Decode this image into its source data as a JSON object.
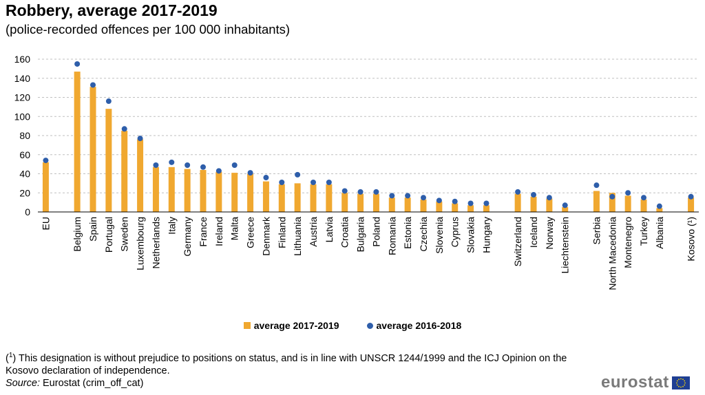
{
  "title": "Robbery, average 2017-2019",
  "subtitle": "(police-recorded offences per 100 000 inhabitants)",
  "legend": {
    "bar_label": "average 2017-2019",
    "dot_label": "average 2016-2018"
  },
  "footnote": {
    "marker": "1",
    "text": " This designation is without prejudice to positions on status, and is in line with UNSCR 1244/1999 and the ICJ Opinion on the Kosovo declaration of independence."
  },
  "source": {
    "label": "Source:",
    "text": " Eurostat (crim_off_cat)"
  },
  "logo": {
    "text": "eurostat"
  },
  "chart_data": {
    "type": "bar",
    "title": "Robbery, average 2017-2019",
    "subtitle": "(police-recorded offences per 100 000 inhabitants)",
    "xlabel": "",
    "ylabel": "",
    "ylim": [
      0,
      160
    ],
    "yticks": [
      0,
      20,
      40,
      60,
      80,
      100,
      120,
      140,
      160
    ],
    "grid": "horizontal dashed",
    "legend_position": "bottom-center",
    "colors": {
      "bar": "#F0A830",
      "dot": "#2E5EAA",
      "grid": "#bfbfbf"
    },
    "categories": [
      "EU",
      "Belgium",
      "Spain",
      "Portugal",
      "Sweden",
      "Luxembourg",
      "Netherlands",
      "Italy",
      "Germany",
      "France",
      "Ireland",
      "Malta",
      "Greece",
      "Denmark",
      "Finland",
      "Lithuania",
      "Austria",
      "Latvia",
      "Croatia",
      "Bulgaria",
      "Poland",
      "Romania",
      "Estonia",
      "Czechia",
      "Slovenia",
      "Cyprus",
      "Slovakia",
      "Hungary",
      "Switzerland",
      "Iceland",
      "Norway",
      "Liechtenstein",
      "Serbia",
      "North Macedonia",
      "Montenegro",
      "Turkey",
      "Albania",
      "Kosovo (¹)"
    ],
    "groups": [
      1,
      27,
      4,
      5,
      1
    ],
    "series": [
      {
        "name": "average 2017-2019",
        "kind": "bar",
        "values": [
          52,
          147,
          131,
          108,
          85,
          76,
          47,
          47,
          45,
          44,
          42,
          41,
          40,
          32,
          29,
          30,
          29,
          29,
          20,
          19,
          19,
          15,
          15,
          13,
          11,
          9,
          7,
          7,
          19,
          16,
          14,
          5,
          22,
          20,
          17,
          13,
          4,
          15
        ]
      },
      {
        "name": "average 2016-2018",
        "kind": "dot",
        "values": [
          54,
          155,
          133,
          116,
          87,
          77,
          49,
          52,
          49,
          47,
          43,
          49,
          41,
          36,
          31,
          39,
          31,
          31,
          22,
          21,
          21,
          17,
          17,
          15,
          12,
          11,
          9,
          9,
          21,
          18,
          15,
          7,
          28,
          16,
          20,
          15,
          6,
          16
        ]
      }
    ]
  }
}
